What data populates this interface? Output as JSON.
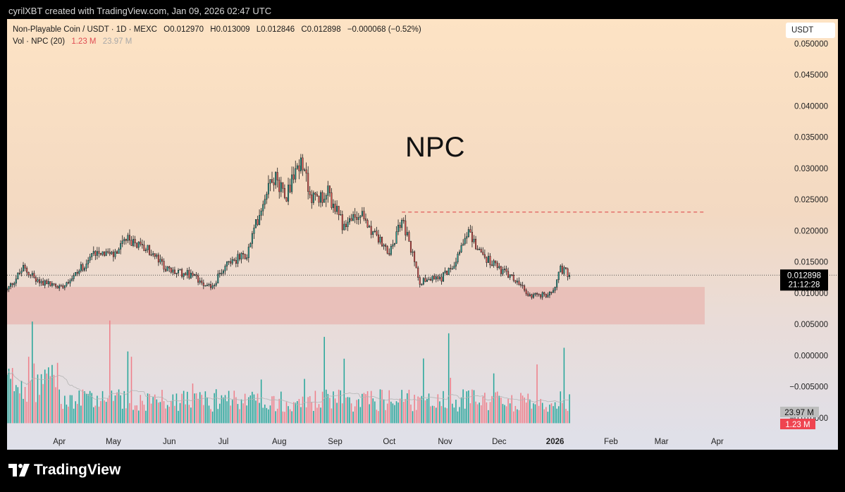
{
  "top_bar": {
    "credit": "cyrilXBT created with TradingView.com, Jan 09, 2026 02:47 UTC"
  },
  "header": {
    "pair": "Non-Playable Coin / USDT · 1D · MEXC",
    "open": "O0.012970",
    "high": "H0.013009",
    "low": "L0.012846",
    "close": "C0.012898",
    "change": "−0.000068 (−0.52%)",
    "vol_label": "Vol · NPC (20)",
    "vol_current": "1.23 M",
    "vol_ma": "23.97 M"
  },
  "currency_button": "USDT",
  "footer": {
    "brand": "TradingView"
  },
  "colors": {
    "up": "#26a69a",
    "down": "#ef5350",
    "vol_up": "#26a69a",
    "vol_down": "#ef7f8a",
    "zone": "#e8a9a4",
    "resistance": "#e05a5a",
    "price_badge": "#000000",
    "vol_ma_badge": "#bdbdbd",
    "vol_cur_badge": "#ef4450"
  },
  "chart_data": {
    "type": "candlestick",
    "title": "NPC",
    "y_axis": {
      "min": -0.012,
      "max": 0.055,
      "ticks": [
        "0.050000",
        "0.045000",
        "0.040000",
        "0.035000",
        "0.030000",
        "0.025000",
        "0.020000",
        "0.015000",
        "0.010000",
        "0.005000",
        "0.000000",
        "−0.005000",
        "−0.010000"
      ]
    },
    "x_axis": {
      "labels": [
        {
          "label": "Apr",
          "date": "2025-04-01"
        },
        {
          "label": "May",
          "date": "2025-05-01"
        },
        {
          "label": "Jun",
          "date": "2025-06-01"
        },
        {
          "label": "Jul",
          "date": "2025-07-01"
        },
        {
          "label": "Aug",
          "date": "2025-08-01"
        },
        {
          "label": "Sep",
          "date": "2025-09-01"
        },
        {
          "label": "Oct",
          "date": "2025-10-01"
        },
        {
          "label": "Nov",
          "date": "2025-11-01"
        },
        {
          "label": "Dec",
          "date": "2025-12-01"
        },
        {
          "label": "2026",
          "date": "2026-01-01",
          "bold": true
        },
        {
          "label": "Feb",
          "date": "2026-02-01"
        },
        {
          "label": "Mar",
          "date": "2026-03-01"
        },
        {
          "label": "Apr",
          "date": "2026-04-01"
        }
      ],
      "start": "2025-03-03",
      "end": "2026-04-30"
    },
    "price_path": {
      "start": "2025-03-03",
      "end": "2026-01-09",
      "points": [
        [
          "2025-03-03",
          0.0105
        ],
        [
          "2025-03-12",
          0.014
        ],
        [
          "2025-03-20",
          0.012
        ],
        [
          "2025-04-01",
          0.011
        ],
        [
          "2025-04-10",
          0.013
        ],
        [
          "2025-04-22",
          0.017
        ],
        [
          "2025-05-01",
          0.016
        ],
        [
          "2025-05-08",
          0.0185
        ],
        [
          "2025-05-20",
          0.017
        ],
        [
          "2025-06-01",
          0.0135
        ],
        [
          "2025-06-12",
          0.013
        ],
        [
          "2025-06-25",
          0.011
        ],
        [
          "2025-07-03",
          0.015
        ],
        [
          "2025-07-14",
          0.016
        ],
        [
          "2025-07-22",
          0.024
        ],
        [
          "2025-07-28",
          0.029
        ],
        [
          "2025-08-05",
          0.026
        ],
        [
          "2025-08-12",
          0.031
        ],
        [
          "2025-08-20",
          0.025
        ],
        [
          "2025-08-28",
          0.026
        ],
        [
          "2025-09-05",
          0.021
        ],
        [
          "2025-09-15",
          0.0225
        ],
        [
          "2025-09-22",
          0.02
        ],
        [
          "2025-10-01",
          0.016
        ],
        [
          "2025-10-08",
          0.022
        ],
        [
          "2025-10-18",
          0.012
        ],
        [
          "2025-10-30",
          0.0125
        ],
        [
          "2025-11-06",
          0.015
        ],
        [
          "2025-11-13",
          0.02
        ],
        [
          "2025-11-22",
          0.016
        ],
        [
          "2025-12-01",
          0.014
        ],
        [
          "2025-12-10",
          0.012
        ],
        [
          "2025-12-18",
          0.0095
        ],
        [
          "2025-12-30",
          0.0098
        ],
        [
          "2026-01-04",
          0.014
        ],
        [
          "2026-01-09",
          0.0129
        ]
      ]
    },
    "last_price": {
      "value": 0.012898,
      "label": "0.012898",
      "countdown": "21:12:28"
    },
    "resistance_line": {
      "price": 0.023,
      "from": "2025-10-08",
      "to": "2026-03-25",
      "style": "dashed"
    },
    "support_zone": {
      "low": 0.005,
      "high": 0.011,
      "from": "2025-03-03",
      "to": "2026-03-25"
    },
    "volume": {
      "ma_period": 20,
      "unit": "M",
      "current": 1.23,
      "current_label": "1.23 M",
      "ma": 23.97,
      "ma_label": "23.97 M",
      "scale_max": 180
    }
  }
}
